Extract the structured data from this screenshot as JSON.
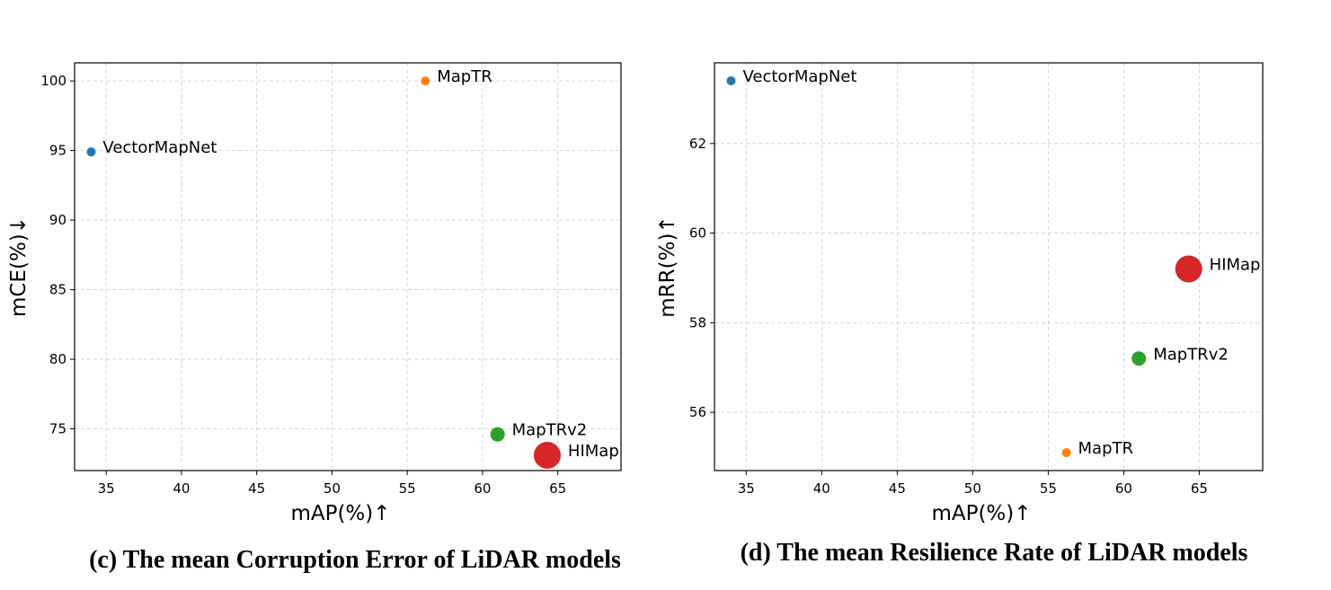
{
  "chart_data": [
    {
      "type": "scatter",
      "caption": "(c) The mean Corruption Error of LiDAR models",
      "xlabel": "mAP(%)↑",
      "ylabel": "mCE(%)↓",
      "xlim": [
        32.9,
        69.2
      ],
      "ylim": [
        72.0,
        101.3
      ],
      "xticks": [
        35,
        40,
        45,
        50,
        55,
        60,
        65
      ],
      "yticks": [
        75,
        80,
        85,
        90,
        95,
        100
      ],
      "grid": true,
      "points": [
        {
          "label": "VectorMapNet",
          "x": 34.0,
          "y": 94.9,
          "color": "#1f77b4",
          "size": 5
        },
        {
          "label": "MapTR",
          "x": 56.2,
          "y": 100.0,
          "color": "#ff7f0e",
          "size": 5
        },
        {
          "label": "MapTRv2",
          "x": 61.0,
          "y": 74.6,
          "color": "#2ca02c",
          "size": 8
        },
        {
          "label": "HIMap",
          "x": 64.3,
          "y": 73.1,
          "color": "#d62728",
          "size": 15
        }
      ]
    },
    {
      "type": "scatter",
      "caption": "(d) The mean Resilience Rate of LiDAR models",
      "xlabel": "mAP(%)↑",
      "ylabel": "mRR(%)↑",
      "xlim": [
        32.9,
        69.2
      ],
      "ylim": [
        54.7,
        63.8
      ],
      "xticks": [
        35,
        40,
        45,
        50,
        55,
        60,
        65
      ],
      "yticks": [
        56,
        58,
        60,
        62
      ],
      "grid": true,
      "points": [
        {
          "label": "VectorMapNet",
          "x": 34.0,
          "y": 63.4,
          "color": "#1f77b4",
          "size": 5
        },
        {
          "label": "MapTR",
          "x": 56.2,
          "y": 55.1,
          "color": "#ff7f0e",
          "size": 5
        },
        {
          "label": "MapTRv2",
          "x": 61.0,
          "y": 57.2,
          "color": "#2ca02c",
          "size": 8
        },
        {
          "label": "HIMap",
          "x": 64.3,
          "y": 59.2,
          "color": "#d62728",
          "size": 15
        }
      ]
    }
  ]
}
